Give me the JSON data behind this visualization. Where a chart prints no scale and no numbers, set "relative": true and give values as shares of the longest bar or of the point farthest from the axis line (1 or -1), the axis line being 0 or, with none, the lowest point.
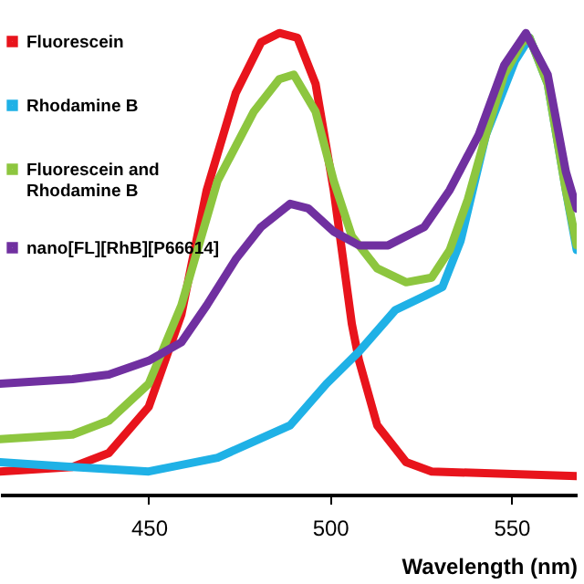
{
  "chart_data": {
    "type": "line",
    "xlabel": "Wavelength (nm)",
    "relative": true,
    "xlim": [
      409,
      568
    ],
    "xticks": [
      450,
      500,
      550
    ],
    "grid": false,
    "legend": "top left",
    "marker": "none",
    "line_style": "solid",
    "series": [
      {
        "name": "Fluorescein",
        "color": "#e8141c",
        "x": [
          409,
          429,
          439,
          450,
          459,
          466,
          474,
          481,
          486,
          491,
          496,
          501,
          506,
          508,
          513,
          521,
          528,
          568
        ],
        "values": [
          0.05,
          0.06,
          0.09,
          0.19,
          0.39,
          0.66,
          0.87,
          0.98,
          1.0,
          0.99,
          0.89,
          0.66,
          0.37,
          0.29,
          0.15,
          0.07,
          0.05,
          0.04
        ]
      },
      {
        "name": "Rhodamine B",
        "color": "#1fb1e6",
        "x": [
          409,
          429,
          450,
          469,
          489,
          499,
          508,
          518,
          526,
          531,
          536,
          543,
          551,
          555,
          560,
          565,
          568
        ],
        "values": [
          0.07,
          0.06,
          0.05,
          0.08,
          0.15,
          0.24,
          0.31,
          0.4,
          0.43,
          0.45,
          0.55,
          0.78,
          0.94,
          0.99,
          0.89,
          0.66,
          0.53
        ]
      },
      {
        "name": "Fluorescein and Rhodamine B",
        "color": "#8dc63f",
        "x": [
          409,
          429,
          439,
          450,
          459,
          469,
          479,
          486,
          490,
          496,
          501,
          506,
          513,
          521,
          528,
          533,
          538,
          543,
          548,
          553,
          555,
          560,
          565,
          568
        ],
        "values": [
          0.12,
          0.13,
          0.16,
          0.24,
          0.41,
          0.68,
          0.83,
          0.9,
          0.91,
          0.83,
          0.68,
          0.56,
          0.49,
          0.46,
          0.47,
          0.53,
          0.64,
          0.78,
          0.91,
          0.98,
          0.99,
          0.89,
          0.66,
          0.54
        ]
      },
      {
        "name": "nano[FL][RhB][P66614]",
        "color": "#7030a0",
        "x": [
          409,
          429,
          439,
          450,
          459,
          466,
          474,
          481,
          489,
          494,
          501,
          508,
          516,
          526,
          533,
          541,
          548,
          554,
          560,
          565,
          568
        ],
        "values": [
          0.24,
          0.25,
          0.26,
          0.29,
          0.33,
          0.41,
          0.51,
          0.58,
          0.63,
          0.62,
          0.57,
          0.54,
          0.54,
          0.58,
          0.66,
          0.78,
          0.93,
          1.0,
          0.91,
          0.7,
          0.62
        ]
      }
    ]
  }
}
